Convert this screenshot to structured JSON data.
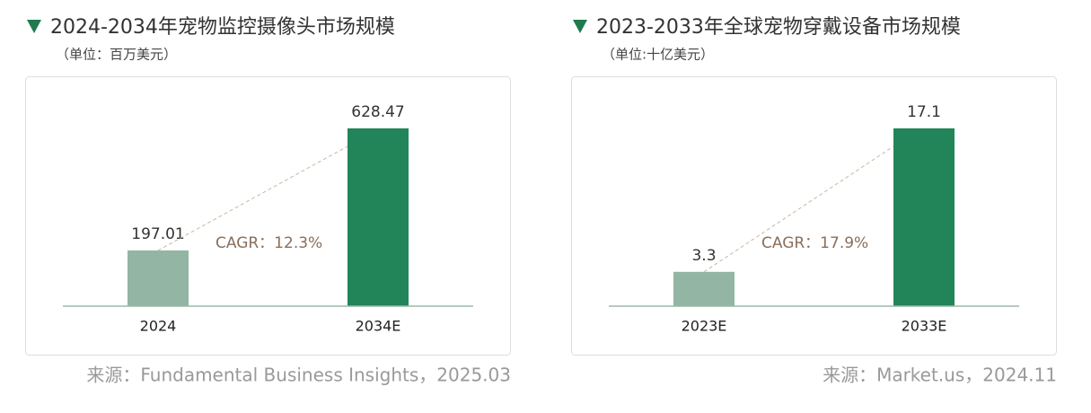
{
  "chart_data": [
    {
      "type": "bar",
      "title": "2024-2034年宠物监控摄像头市场规模",
      "subtitle": "（单位：百万美元）",
      "categories": [
        "2024",
        "2034E"
      ],
      "values": [
        197.01,
        628.47
      ],
      "colors": [
        "#93b5a4",
        "#22855a"
      ],
      "annotation": "CAGR：12.3%",
      "source": "来源：Fundamental Business Insights，2025.03"
    },
    {
      "type": "bar",
      "title": "2023-2033年全球宠物穿戴设备市场规模",
      "subtitle": "（单位:十亿美元）",
      "categories": [
        "2023E",
        "2033E"
      ],
      "values": [
        3.3,
        17.1
      ],
      "colors": [
        "#93b5a4",
        "#22855a"
      ],
      "annotation": "CAGR：17.9%",
      "source": "来源：Market.us，2024.11"
    }
  ]
}
